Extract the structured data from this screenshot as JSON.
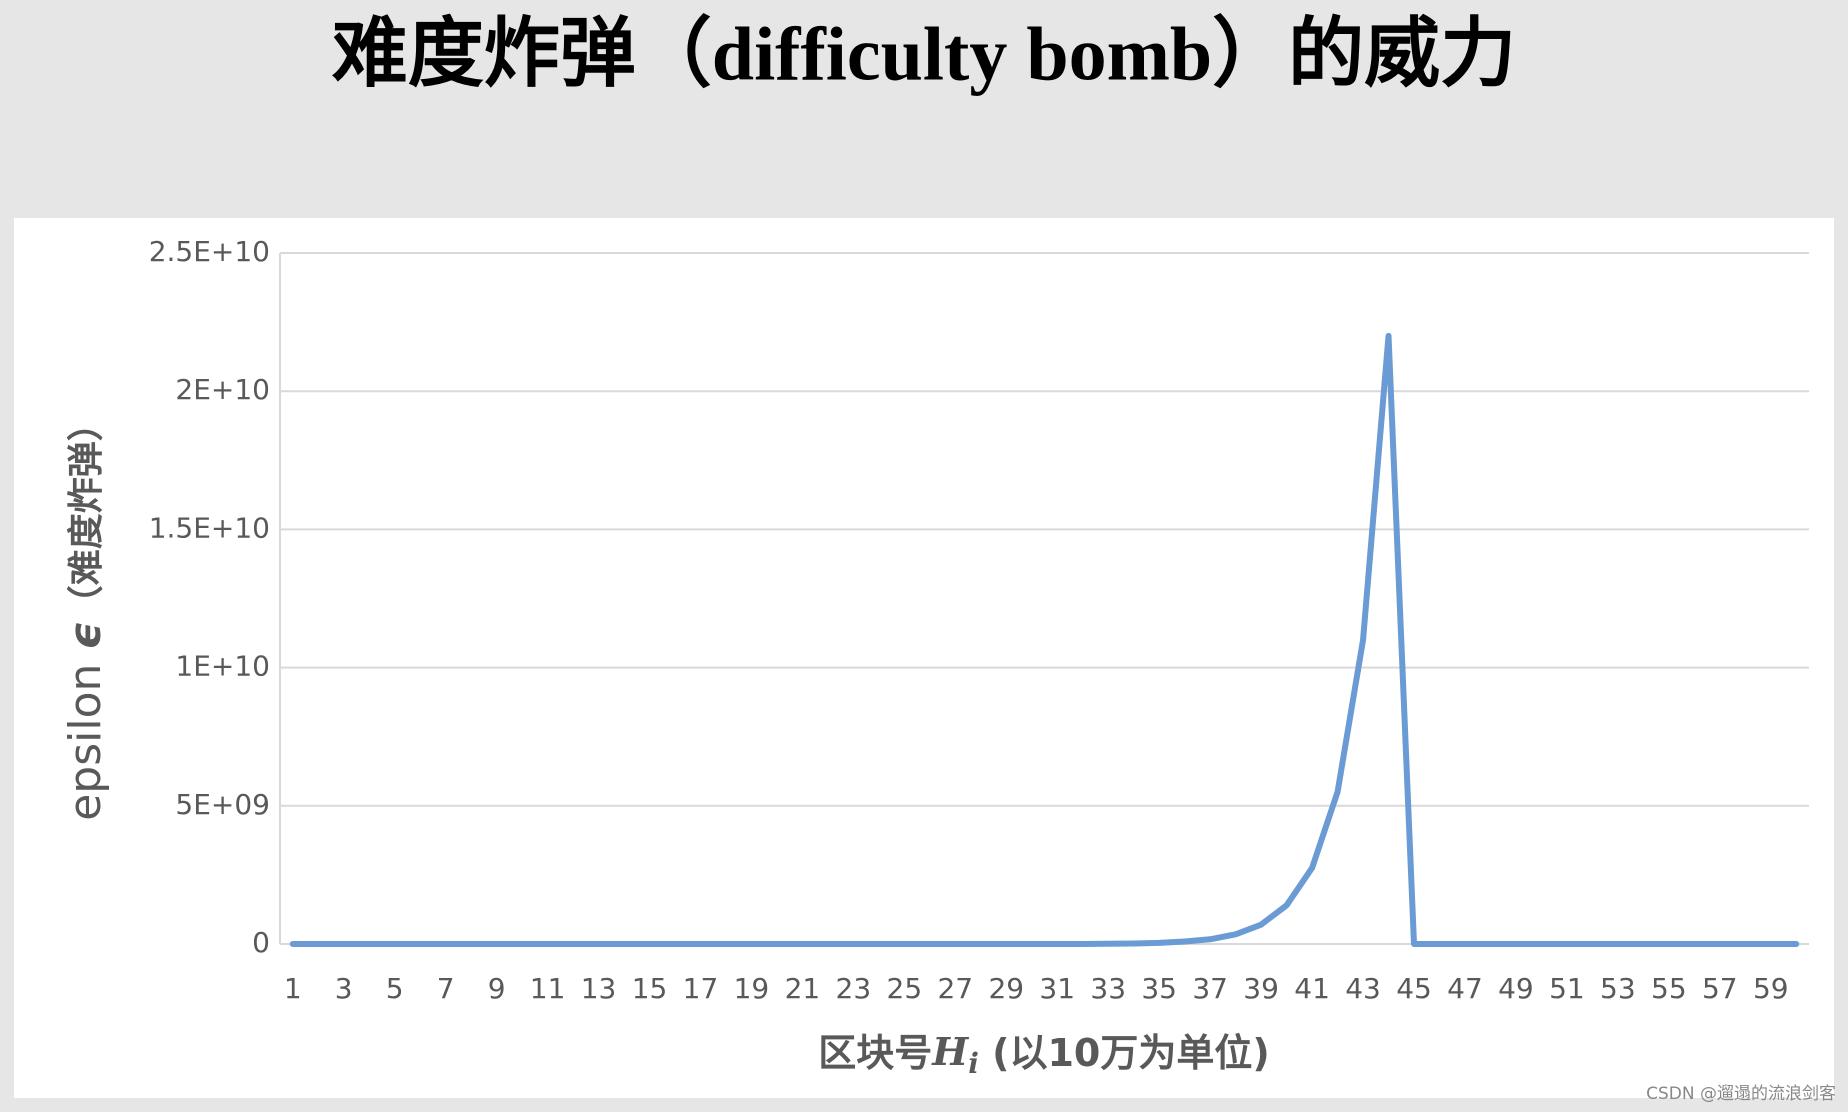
{
  "chart_data": {
    "type": "line",
    "title": "难度炸弹（difficulty bomb）的威力",
    "x_label": "区块号",
    "x_label_symbol": "H",
    "x_label_subscript": "i",
    "x_label_unit": " (以10万为单位)",
    "y_label": "epsilon ",
    "y_label_symbol": "ϵ",
    "y_label_note": "（难度炸弹）",
    "watermark": "CSDN @遛遢的流浪剑客",
    "categories": [
      "1",
      null,
      "3",
      null,
      "5",
      null,
      "7",
      null,
      "9",
      null,
      "11",
      null,
      "13",
      null,
      "15",
      null,
      "17",
      null,
      "19",
      null,
      "21",
      null,
      "23",
      null,
      "25",
      null,
      "27",
      null,
      "29",
      null,
      "31",
      null,
      "33",
      null,
      "35",
      null,
      "37",
      null,
      "39",
      null,
      "41",
      null,
      "43",
      null,
      "45",
      null,
      "47",
      null,
      "49",
      null,
      "51",
      null,
      "53",
      null,
      "55",
      null,
      "57",
      null,
      "59",
      null
    ],
    "values": [
      0,
      0,
      0,
      0,
      0,
      0,
      0,
      0,
      0,
      0,
      0,
      0,
      0,
      0,
      0,
      0,
      0,
      0,
      0,
      0,
      0,
      0,
      0,
      0,
      0,
      0,
      0,
      0,
      0,
      0,
      0,
      0,
      10000000,
      20000000,
      40000000,
      90000000,
      170000000,
      350000000,
      700000000,
      1400000000,
      2750000000,
      5500000000,
      11000000000,
      22000000000,
      0,
      0,
      0,
      0,
      0,
      0,
      0,
      0,
      0,
      0,
      0,
      0,
      0,
      0,
      0,
      0
    ],
    "color": "#6a9bd4",
    "ylim": [
      0,
      25000000000
    ],
    "yticks": [
      0,
      {
        "value": 5000000000,
        "label": "5E+09"
      },
      {
        "value": 10000000000,
        "label": "1E+10"
      },
      {
        "value": 15000000000,
        "label": "1.5E+10"
      },
      {
        "value": 20000000000,
        "label": "2E+10"
      },
      {
        "value": 25000000000,
        "label": "2.5E+10"
      }
    ],
    "grid": true
  }
}
